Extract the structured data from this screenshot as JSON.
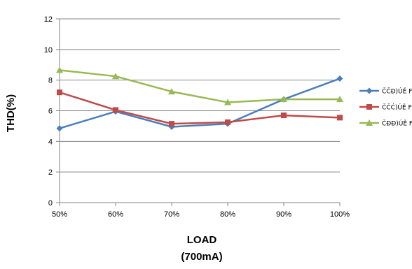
{
  "chart_data": {
    "type": "line",
    "categories": [
      "50%",
      "60%",
      "70%",
      "80%",
      "90%",
      "100%"
    ],
    "xlabel": [
      "LOAD",
      "(700mA)"
    ],
    "ylabel": "THD(%)",
    "ylim": [
      0,
      12
    ],
    "yticks": [
      "0",
      "2",
      "4",
      "6",
      "8",
      "10",
      "12"
    ],
    "grid": true,
    "legend_position": "right",
    "series": [
      {
        "name": "ČČĐ)ÚĚ F",
        "color": "#4a7ebb",
        "marker": "diamond",
        "values": [
          4.85,
          5.95,
          4.95,
          5.15,
          6.75,
          8.1
        ]
      },
      {
        "name": "ČČĆ)ÚĚ F",
        "color": "#be4b48",
        "marker": "square",
        "values": [
          7.2,
          6.05,
          5.15,
          5.25,
          5.7,
          5.55
        ]
      },
      {
        "name": "ČĐĐ)ÚĚ F",
        "color": "#98b954",
        "marker": "triangle",
        "values": [
          8.65,
          8.25,
          7.25,
          6.55,
          6.75,
          6.75
        ]
      }
    ]
  }
}
